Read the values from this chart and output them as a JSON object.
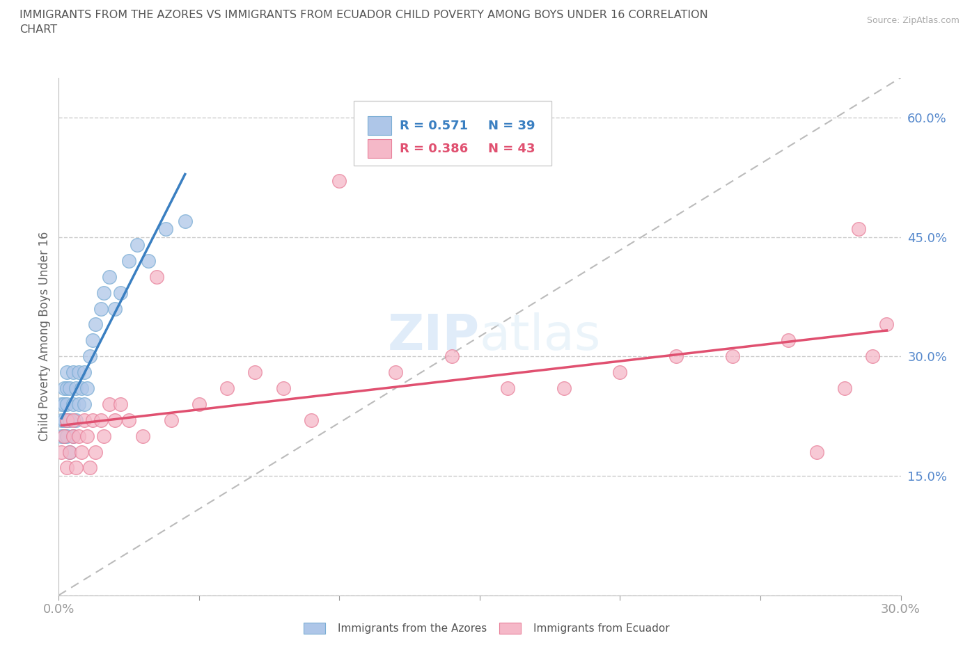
{
  "title": "IMMIGRANTS FROM THE AZORES VS IMMIGRANTS FROM ECUADOR CHILD POVERTY AMONG BOYS UNDER 16 CORRELATION\nCHART",
  "source_text": "Source: ZipAtlas.com",
  "ylabel": "Child Poverty Among Boys Under 16",
  "xlim": [
    0.0,
    0.3
  ],
  "ylim": [
    0.0,
    0.65
  ],
  "xticks": [
    0.0,
    0.05,
    0.1,
    0.15,
    0.2,
    0.25,
    0.3
  ],
  "xticklabels": [
    "0.0%",
    "",
    "",
    "",
    "",
    "",
    "30.0%"
  ],
  "yticks": [
    0.0,
    0.15,
    0.3,
    0.45,
    0.6
  ],
  "yticklabels": [
    "",
    "15.0%",
    "30.0%",
    "45.0%",
    "60.0%"
  ],
  "azores_fill_color": "#aec6e8",
  "azores_edge_color": "#7aadd4",
  "ecuador_fill_color": "#f5b8c8",
  "ecuador_edge_color": "#e8809a",
  "azores_line_color": "#3a7fc1",
  "ecuador_line_color": "#e05070",
  "ref_line_color": "#bbbbbb",
  "legend_R_azores": "R = 0.571",
  "legend_N_azores": "N = 39",
  "legend_R_ecuador": "R = 0.386",
  "legend_N_ecuador": "N = 43",
  "watermark": "ZIPatlas",
  "azores_x": [
    0.001,
    0.001,
    0.001,
    0.002,
    0.002,
    0.002,
    0.002,
    0.003,
    0.003,
    0.003,
    0.003,
    0.003,
    0.004,
    0.004,
    0.004,
    0.005,
    0.005,
    0.005,
    0.006,
    0.006,
    0.007,
    0.007,
    0.008,
    0.009,
    0.009,
    0.01,
    0.011,
    0.012,
    0.013,
    0.015,
    0.016,
    0.018,
    0.02,
    0.022,
    0.025,
    0.028,
    0.032,
    0.038,
    0.045
  ],
  "azores_y": [
    0.2,
    0.22,
    0.24,
    0.2,
    0.22,
    0.24,
    0.26,
    0.2,
    0.22,
    0.24,
    0.26,
    0.28,
    0.18,
    0.22,
    0.26,
    0.2,
    0.24,
    0.28,
    0.22,
    0.26,
    0.24,
    0.28,
    0.26,
    0.24,
    0.28,
    0.26,
    0.3,
    0.32,
    0.34,
    0.36,
    0.38,
    0.4,
    0.36,
    0.38,
    0.42,
    0.44,
    0.42,
    0.46,
    0.47
  ],
  "ecuador_x": [
    0.001,
    0.002,
    0.003,
    0.003,
    0.004,
    0.005,
    0.005,
    0.006,
    0.007,
    0.008,
    0.009,
    0.01,
    0.011,
    0.012,
    0.013,
    0.015,
    0.016,
    0.018,
    0.02,
    0.022,
    0.025,
    0.03,
    0.035,
    0.04,
    0.05,
    0.06,
    0.07,
    0.08,
    0.09,
    0.1,
    0.12,
    0.14,
    0.16,
    0.18,
    0.2,
    0.22,
    0.24,
    0.26,
    0.27,
    0.28,
    0.285,
    0.29,
    0.295
  ],
  "ecuador_y": [
    0.18,
    0.2,
    0.16,
    0.22,
    0.18,
    0.2,
    0.22,
    0.16,
    0.2,
    0.18,
    0.22,
    0.2,
    0.16,
    0.22,
    0.18,
    0.22,
    0.2,
    0.24,
    0.22,
    0.24,
    0.22,
    0.2,
    0.4,
    0.22,
    0.24,
    0.26,
    0.28,
    0.26,
    0.22,
    0.52,
    0.28,
    0.3,
    0.26,
    0.26,
    0.28,
    0.3,
    0.3,
    0.32,
    0.18,
    0.26,
    0.46,
    0.3,
    0.34
  ]
}
